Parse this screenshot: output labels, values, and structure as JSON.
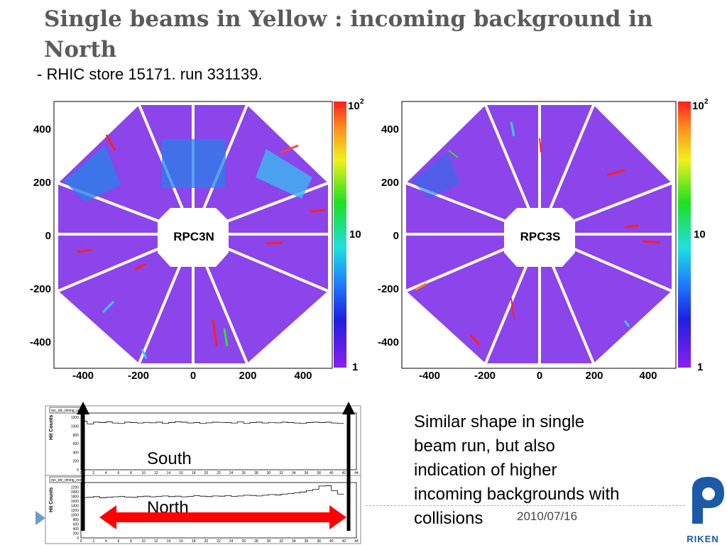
{
  "slide": {
    "title": "Single beams in Yellow : incoming background in North",
    "subtitle": "- RHIC store 15171. run 331139.",
    "side_text": "Similar shape in single beam run, but also indication of higher incoming backgrounds with collisions",
    "date": "2010/07/16",
    "logo_text": "RIKEN"
  },
  "colors": {
    "title": "#5a5a5a",
    "accent": "#6f9bc5",
    "background_purple": "#8b45ea",
    "arrow_red": "#ff0000",
    "logo_blue": "#1a5aa8"
  },
  "plots": [
    {
      "label": "RPC3N",
      "x_ticks": [
        "-400",
        "-200",
        "0",
        "200",
        "400"
      ],
      "y_ticks": [
        "400",
        "200",
        "0",
        "-200",
        "-400"
      ],
      "z_labels": {
        "max": "10",
        "max_exp": "2",
        "mid": "10",
        "min": "1"
      }
    },
    {
      "label": "RPC3S",
      "x_ticks": [
        "-400",
        "-200",
        "0",
        "200",
        "400"
      ],
      "y_ticks": [
        "400",
        "200",
        "0",
        "-200",
        "-400"
      ],
      "z_labels": {
        "max": "10",
        "max_exp": "2",
        "mid": "10",
        "min": "1"
      }
    }
  ],
  "histograms": [
    {
      "header": "rpc_tdc_timing_so",
      "ylabel": "Hit Counts",
      "y_ticks": [
        "1200",
        "1000",
        "800",
        "600",
        "400",
        "200",
        "0"
      ],
      "overlay_label": "South",
      "values": [
        1110,
        1050,
        1090,
        1080,
        1100,
        1070,
        1060,
        1090,
        1080,
        1070,
        1085,
        1075,
        1090,
        1060,
        1080,
        1100,
        1090,
        1070,
        1080,
        1060,
        1075,
        1090,
        1085,
        1080,
        1070,
        1095,
        1060,
        1080,
        1090,
        1070,
        1085,
        1075,
        1090,
        1080,
        1070,
        1060,
        1080,
        1090,
        1080,
        1090,
        1070,
        1060
      ]
    },
    {
      "header": "rpc_tdc_timing_nor",
      "ylabel": "Hit Counts",
      "y_ticks": [
        "2200",
        "2000",
        "1800",
        "1600",
        "1400",
        "1200",
        "1000",
        "800",
        "600",
        "400",
        "200",
        "0"
      ],
      "overlay_label": "North",
      "values": [
        1750,
        1760,
        1790,
        1740,
        1760,
        1780,
        1800,
        1770,
        1760,
        1790,
        1810,
        1780,
        1800,
        1820,
        1790,
        1810,
        1780,
        1800,
        1830,
        1810,
        1790,
        1820,
        1810,
        1830,
        1800,
        1820,
        1850,
        1840,
        1820,
        1850,
        1880,
        1860,
        1900,
        1920,
        1950,
        1990,
        2050,
        2100,
        2250,
        2260,
        2050,
        1900
      ]
    }
  ],
  "hist_x_ticks": [
    "0",
    "2",
    "4",
    "6",
    "8",
    "10",
    "12",
    "14",
    "16",
    "18",
    "20",
    "22",
    "24",
    "26",
    "28",
    "30",
    "32",
    "34",
    "36",
    "38",
    "40",
    "42",
    "44"
  ]
}
